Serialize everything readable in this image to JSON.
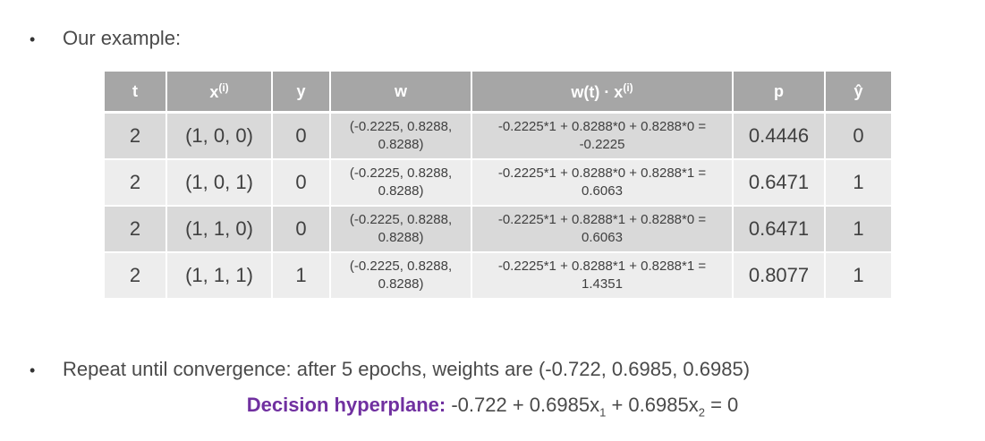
{
  "bullets": {
    "first": "Our example:",
    "second": "Repeat until convergence: after 5 epochs, weights are (-0.722, 0.6985, 0.6985)"
  },
  "table": {
    "headers": {
      "t": "t",
      "x_base": "x",
      "x_sup": "(i)",
      "y": "y",
      "w": "w",
      "wx_base": "w(t) · x",
      "wx_sup": "(i)",
      "p": "p",
      "yhat": "ŷ"
    },
    "rows": [
      {
        "t": "2",
        "x": "(1, 0, 0)",
        "y": "0",
        "w_line1": "(-0.2225, 0.8288,",
        "w_line2": "0.8288)",
        "wx_line1": "-0.2225*1 + 0.8288*0 + 0.8288*0 =",
        "wx_line2": "-0.2225",
        "p": "0.4446",
        "yhat": "0"
      },
      {
        "t": "2",
        "x": "(1, 0, 1)",
        "y": "0",
        "w_line1": "(-0.2225, 0.8288,",
        "w_line2": "0.8288)",
        "wx_line1": "-0.2225*1 + 0.8288*0 + 0.8288*1 =",
        "wx_line2": "0.6063",
        "p": "0.6471",
        "yhat": "1"
      },
      {
        "t": "2",
        "x": "(1, 1, 0)",
        "y": "0",
        "w_line1": "(-0.2225, 0.8288,",
        "w_line2": "0.8288)",
        "wx_line1": "-0.2225*1 + 0.8288*1 + 0.8288*0 =",
        "wx_line2": "0.6063",
        "p": "0.6471",
        "yhat": "1"
      },
      {
        "t": "2",
        "x": "(1, 1, 1)",
        "y": "1",
        "w_line1": "(-0.2225, 0.8288,",
        "w_line2": "0.8288)",
        "wx_line1": "-0.2225*1 + 0.8288*1 + 0.8288*1 =",
        "wx_line2": "1.4351",
        "p": "0.8077",
        "yhat": "1"
      }
    ]
  },
  "hyperplane": {
    "label": "Decision hyperplane:",
    "eq_part1": "-0.722 + 0.6985x",
    "sub1": "1",
    "eq_part2": " + 0.6985x",
    "sub2": "2",
    "eq_part3": " = 0"
  },
  "colors": {
    "header_bg": "#a6a6a6",
    "row_dark": "#d9d9d9",
    "row_light": "#ededed",
    "misclassified": "#c00000",
    "label_purple": "#7030a0"
  }
}
